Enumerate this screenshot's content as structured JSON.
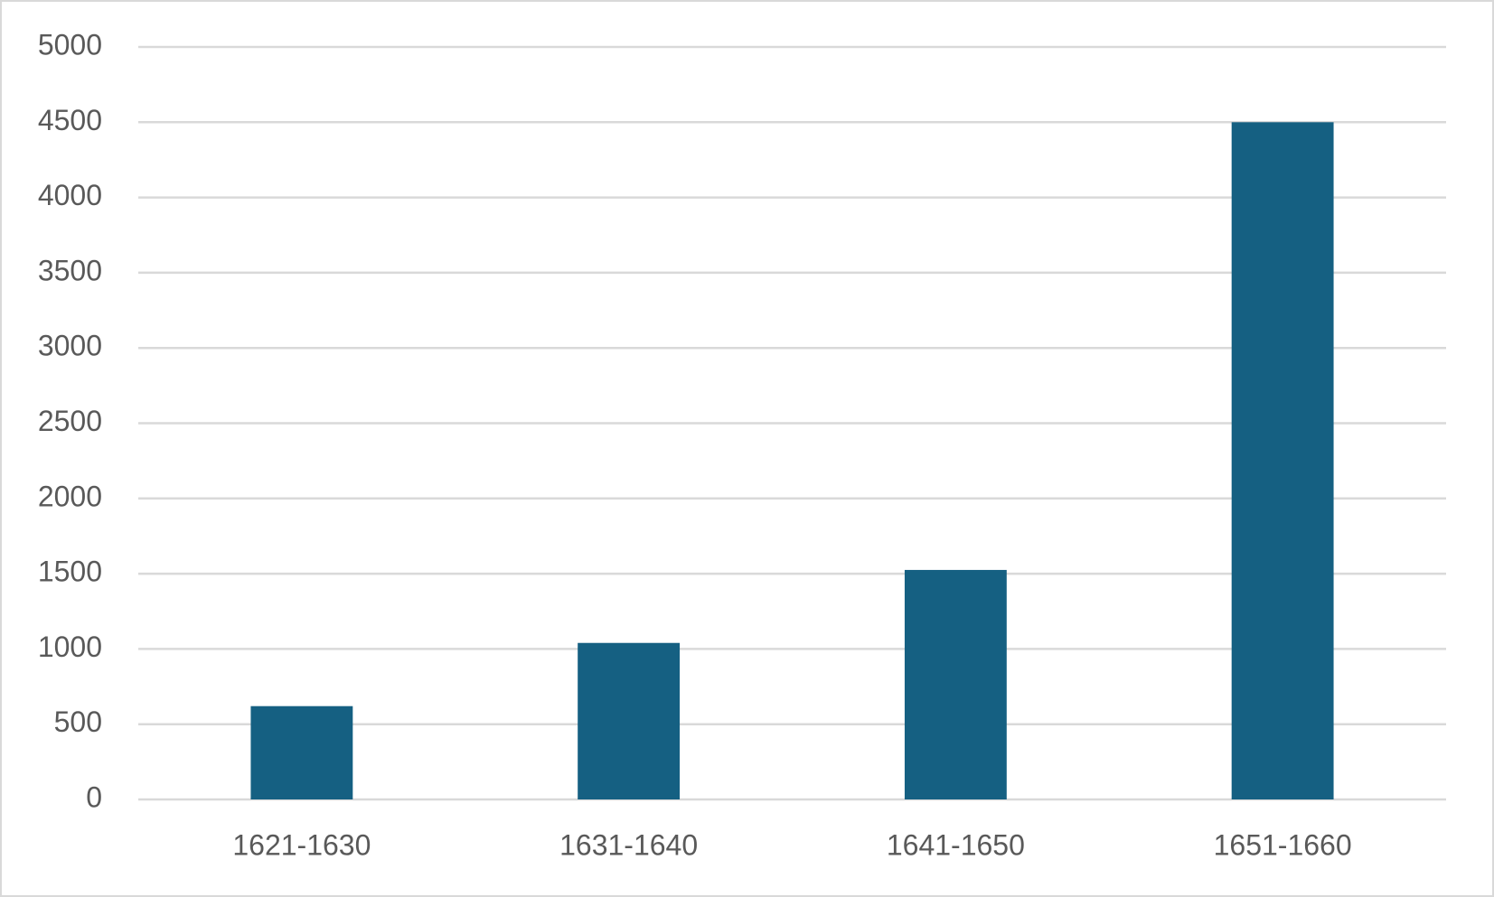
{
  "chart_data": {
    "type": "bar",
    "categories": [
      "1621-1630",
      "1631-1640",
      "1641-1650",
      "1651-1660"
    ],
    "values": [
      620,
      1040,
      1525,
      4500
    ],
    "color": "#156082",
    "ylim": [
      0,
      5000
    ],
    "yticks": [
      0,
      500,
      1000,
      1500,
      2000,
      2500,
      3000,
      3500,
      4000,
      4500,
      5000
    ],
    "grid": true
  }
}
